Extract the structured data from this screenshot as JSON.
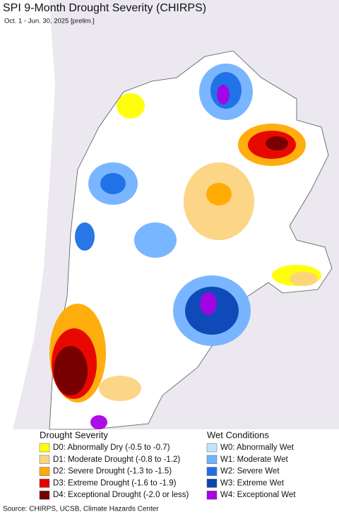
{
  "title": "SPI 9-Month Drought Severity (CHIRPS)",
  "subtitle": "Oct. 1 - Jun. 30, 2025 [prelim.]",
  "legend": {
    "drought": {
      "title": "Drought Severity",
      "items": [
        {
          "label": "D0: Abnormally Dry (-0.5 to -0.7)",
          "color": "#ffff00"
        },
        {
          "label": "D1: Moderate Drought (-0.8 to -1.2)",
          "color": "#fcd37f"
        },
        {
          "label": "D2: Severe Drought (-1.3 to -1.5)",
          "color": "#ffaa00"
        },
        {
          "label": "D3: Extreme Drought (-1.6 to -1.9)",
          "color": "#e60000"
        },
        {
          "label": "D4: Exceptional Drought (-2.0 or less)",
          "color": "#730000"
        }
      ]
    },
    "wet": {
      "title": "Wet Conditions",
      "items": [
        {
          "label": "W0: Abnormally Wet",
          "color": "#bde6fb"
        },
        {
          "label": "W1: Moderate Wet",
          "color": "#73b2ff"
        },
        {
          "label": "W2: Severe Wet",
          "color": "#1e6fe6"
        },
        {
          "label": "W3: Extreme Wet",
          "color": "#0a46b4"
        },
        {
          "label": "W4: Exceptional Wet",
          "color": "#a900e6"
        }
      ]
    }
  },
  "source": "Source: CHIRPS, UCSB, Climate Hazards Center"
}
